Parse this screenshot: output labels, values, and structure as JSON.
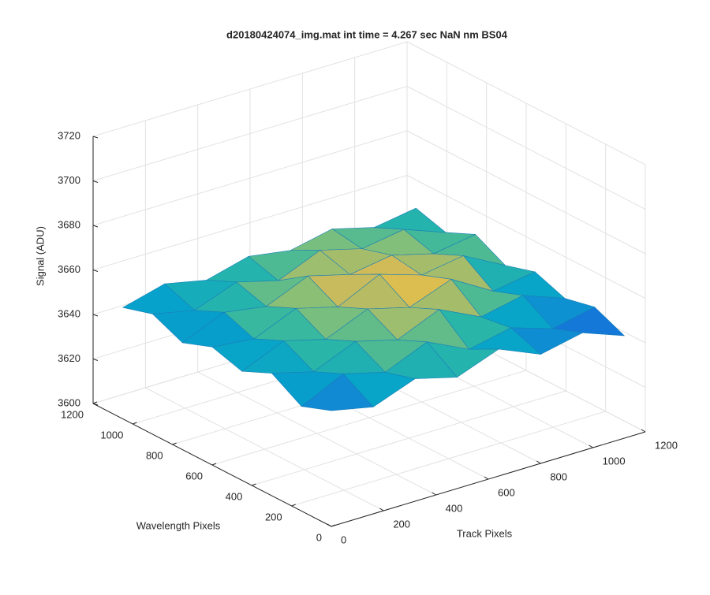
{
  "chart_data": {
    "type": "surface3d",
    "title": "d20180424074_img.mat int time = 4.267 sec  NaN nm BS04",
    "x_label": "Track Pixels",
    "y_label": "Wavelength Pixels",
    "z_label": "Signal (ADU)",
    "xlim": [
      0,
      1200
    ],
    "ylim": [
      0,
      1200
    ],
    "zlim": [
      3600,
      3720
    ],
    "xticks": [
      0,
      200,
      400,
      600,
      800,
      1000,
      1200
    ],
    "yticks": [
      0,
      200,
      400,
      600,
      800,
      1000,
      1200
    ],
    "zticks": [
      3600,
      3620,
      3640,
      3660,
      3680,
      3700,
      3720
    ],
    "grid": true,
    "colormap": "parula",
    "x": [
      0,
      160,
      320,
      480,
      640,
      800,
      960,
      1120
    ],
    "y": [
      0,
      150,
      300,
      450,
      600,
      750,
      900,
      1050
    ],
    "z": [
      [
        3652,
        3648,
        3655,
        3650,
        3657,
        3649,
        3653,
        3646
      ],
      [
        3647,
        3656,
        3651,
        3659,
        3650,
        3654,
        3648,
        3652
      ],
      [
        3655,
        3650,
        3658,
        3653,
        3661,
        3652,
        3656,
        3649
      ],
      [
        3649,
        3657,
        3652,
        3660,
        3655,
        3662,
        3651,
        3654
      ],
      [
        3653,
        3651,
        3659,
        3654,
        3663,
        3657,
        3660,
        3650
      ],
      [
        3648,
        3656,
        3653,
        3661,
        3656,
        3659,
        3654,
        3657
      ],
      [
        3654,
        3650,
        3657,
        3652,
        3660,
        3655,
        3658,
        3651
      ],
      [
        3650,
        3655,
        3651,
        3656,
        3653,
        3657,
        3652,
        3655
      ]
    ]
  }
}
